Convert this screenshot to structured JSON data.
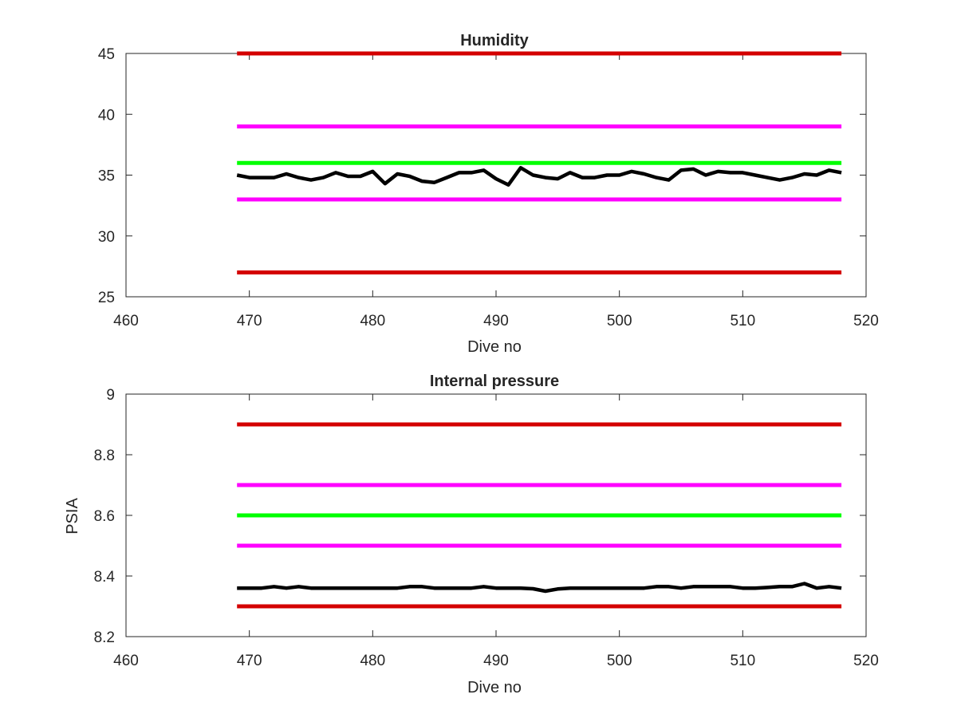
{
  "chart_data": [
    {
      "type": "line",
      "title": "Humidity",
      "xlabel": "Dive no",
      "ylabel": "",
      "xlim": [
        460,
        520
      ],
      "ylim": [
        25,
        45
      ],
      "xticks": [
        "460",
        "470",
        "480",
        "490",
        "500",
        "510",
        "520"
      ],
      "yticks": [
        "25",
        "30",
        "35",
        "40",
        "45"
      ],
      "grid": false,
      "series": [
        {
          "role": "upper-limit",
          "color": "#d40000",
          "x": [
            469,
            518
          ],
          "y": [
            45,
            45
          ]
        },
        {
          "role": "upper-warning",
          "color": "#ff00ff",
          "x": [
            469,
            518
          ],
          "y": [
            39,
            39
          ]
        },
        {
          "role": "nominal",
          "color": "#00ff00",
          "x": [
            469,
            518
          ],
          "y": [
            36,
            36
          ]
        },
        {
          "role": "measured",
          "color": "#000000",
          "x": [
            469,
            470,
            471,
            472,
            473,
            474,
            475,
            476,
            477,
            478,
            479,
            480,
            481,
            482,
            483,
            484,
            485,
            486,
            487,
            488,
            489,
            490,
            491,
            492,
            493,
            494,
            495,
            496,
            497,
            498,
            499,
            500,
            501,
            502,
            503,
            504,
            505,
            506,
            507,
            508,
            509,
            510,
            511,
            512,
            513,
            514,
            515,
            516,
            517,
            518
          ],
          "y": [
            35.0,
            34.8,
            34.8,
            34.8,
            35.1,
            34.8,
            34.6,
            34.8,
            35.2,
            34.9,
            34.9,
            35.3,
            34.3,
            35.1,
            34.9,
            34.5,
            34.4,
            34.8,
            35.2,
            35.2,
            35.4,
            34.7,
            34.2,
            35.6,
            35.0,
            34.8,
            34.7,
            35.2,
            34.8,
            34.8,
            35.0,
            35.0,
            35.3,
            35.1,
            34.8,
            34.6,
            35.4,
            35.5,
            35.0,
            35.3,
            35.2,
            35.2,
            35.0,
            34.8,
            34.6,
            34.8,
            35.1,
            35.0,
            35.4,
            35.2
          ]
        },
        {
          "role": "lower-warning",
          "color": "#ff00ff",
          "x": [
            469,
            518
          ],
          "y": [
            33,
            33
          ]
        },
        {
          "role": "lower-limit",
          "color": "#d40000",
          "x": [
            469,
            518
          ],
          "y": [
            27,
            27
          ]
        }
      ]
    },
    {
      "type": "line",
      "title": "Internal pressure",
      "xlabel": "Dive no",
      "ylabel": "PSIA",
      "xlim": [
        460,
        520
      ],
      "ylim": [
        8.2,
        9.0
      ],
      "xticks": [
        "460",
        "470",
        "480",
        "490",
        "500",
        "510",
        "520"
      ],
      "yticks": [
        "8.2",
        "8.4",
        "8.6",
        "8.8",
        "9"
      ],
      "grid": false,
      "series": [
        {
          "role": "upper-limit",
          "color": "#d40000",
          "x": [
            469,
            518
          ],
          "y": [
            8.9,
            8.9
          ]
        },
        {
          "role": "upper-warning",
          "color": "#ff00ff",
          "x": [
            469,
            518
          ],
          "y": [
            8.7,
            8.7
          ]
        },
        {
          "role": "nominal",
          "color": "#00ff00",
          "x": [
            469,
            518
          ],
          "y": [
            8.6,
            8.6
          ]
        },
        {
          "role": "lower-warning",
          "color": "#ff00ff",
          "x": [
            469,
            518
          ],
          "y": [
            8.5,
            8.5
          ]
        },
        {
          "role": "measured",
          "color": "#000000",
          "x": [
            469,
            470,
            471,
            472,
            473,
            474,
            475,
            476,
            477,
            478,
            479,
            480,
            481,
            482,
            483,
            484,
            485,
            486,
            487,
            488,
            489,
            490,
            491,
            492,
            493,
            494,
            495,
            496,
            497,
            498,
            499,
            500,
            501,
            502,
            503,
            504,
            505,
            506,
            507,
            508,
            509,
            510,
            511,
            512,
            513,
            514,
            515,
            516,
            517,
            518
          ],
          "y": [
            8.36,
            8.36,
            8.36,
            8.365,
            8.36,
            8.365,
            8.36,
            8.36,
            8.36,
            8.36,
            8.36,
            8.36,
            8.36,
            8.36,
            8.365,
            8.365,
            8.36,
            8.36,
            8.36,
            8.36,
            8.365,
            8.36,
            8.36,
            8.36,
            8.358,
            8.35,
            8.357,
            8.36,
            8.36,
            8.36,
            8.36,
            8.36,
            8.36,
            8.36,
            8.365,
            8.365,
            8.36,
            8.365,
            8.365,
            8.365,
            8.365,
            8.36,
            8.36,
            8.362,
            8.365,
            8.365,
            8.375,
            8.36,
            8.365,
            8.36
          ]
        },
        {
          "role": "lower-limit",
          "color": "#d40000",
          "x": [
            469,
            518
          ],
          "y": [
            8.3,
            8.3
          ]
        }
      ]
    }
  ]
}
